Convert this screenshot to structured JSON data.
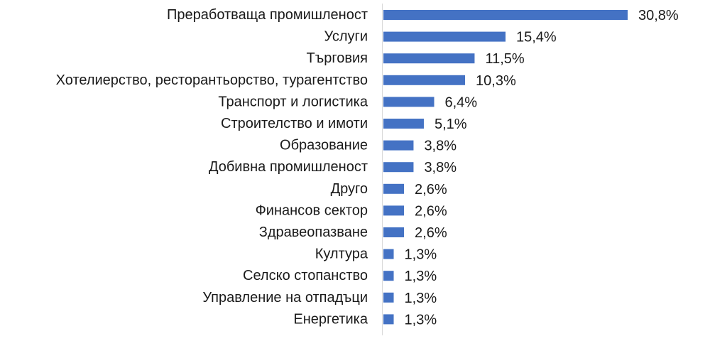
{
  "chart_data": {
    "type": "bar",
    "orientation": "horizontal",
    "categories": [
      "Преработваща промишленост",
      "Услуги",
      "Търговия",
      "Хотелиерство, ресторантьорство, турагентство",
      "Транспорт и логистика",
      "Строителство и имоти",
      "Образование",
      "Добивна промишленост",
      "Друго",
      "Финансов сектор",
      "Здравеопазване",
      "Култура",
      "Селско стопанство",
      "Управление на отпадъци",
      "Енергетика"
    ],
    "values": [
      30.8,
      15.4,
      11.5,
      10.3,
      6.4,
      5.1,
      3.8,
      3.8,
      2.6,
      2.6,
      2.6,
      1.3,
      1.3,
      1.3,
      1.3
    ],
    "value_labels": [
      "30,8%",
      "15,4%",
      "11,5%",
      "10,3%",
      "6,4%",
      "5,1%",
      "3,8%",
      "3,8%",
      "2,6%",
      "2,6%",
      "2,6%",
      "1,3%",
      "1,3%",
      "1,3%",
      "1,3%"
    ],
    "unit": "%",
    "title": "",
    "xlabel": "",
    "ylabel": "",
    "grid": false,
    "legend": "none",
    "bar_color": "#4472C4",
    "axis_color": "#d9d9d9"
  }
}
